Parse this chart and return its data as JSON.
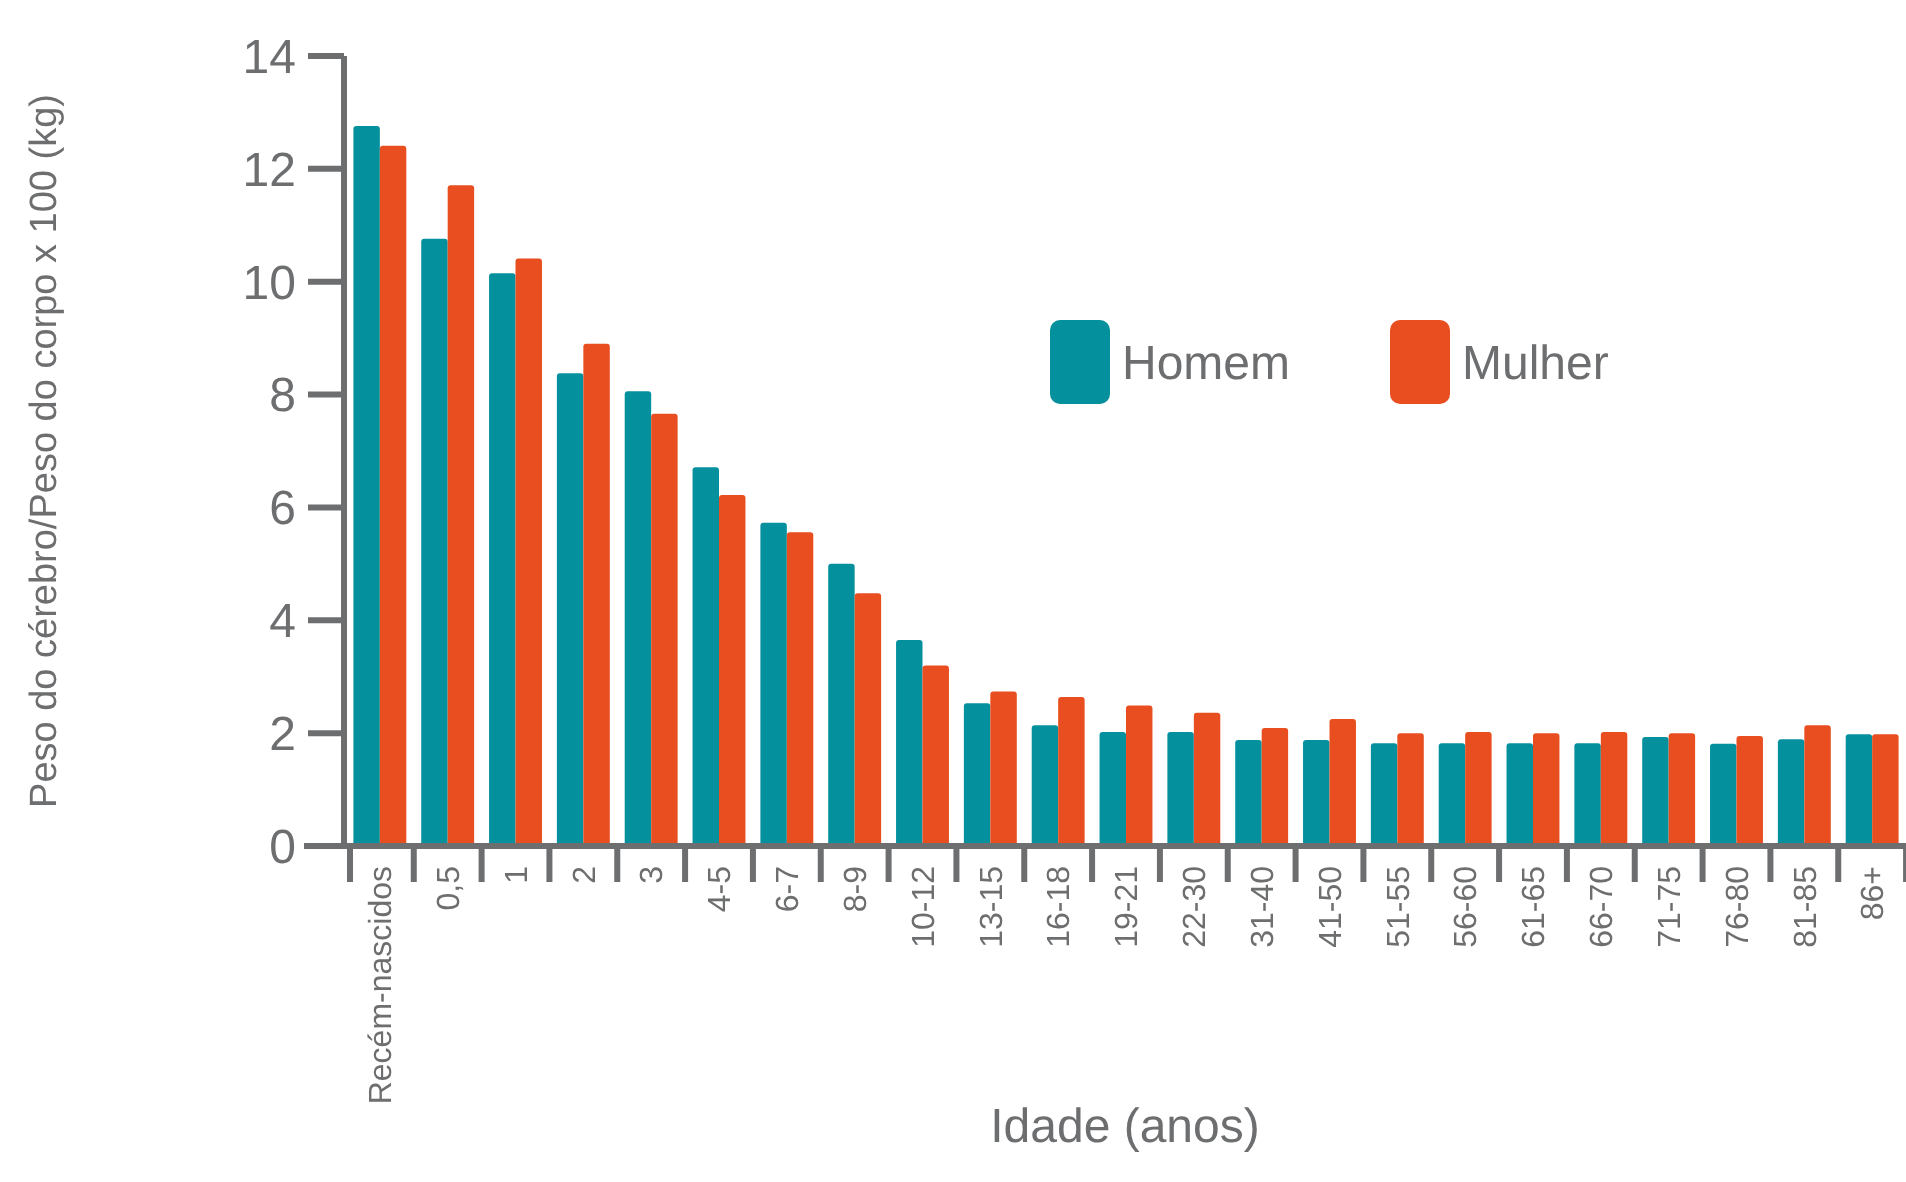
{
  "chart_data": {
    "type": "bar",
    "xlabel": "Idade (anos)",
    "ylabel": "Peso do cérebro/Peso do corpo x 100 (kg)",
    "categories": [
      "Recém-nascidos",
      "0,5",
      "1",
      "2",
      "3",
      "4-5",
      "6-7",
      "8-9",
      "10-12",
      "13-15",
      "16-18",
      "19-21",
      "22-30",
      "31-40",
      "41-50",
      "51-55",
      "56-60",
      "61-65",
      "66-70",
      "71-75",
      "76-80",
      "81-85",
      "86+"
    ],
    "series": [
      {
        "name": "Homem",
        "color": "#05909e",
        "values": [
          12.76,
          10.76,
          10.15,
          8.38,
          8.06,
          6.71,
          5.73,
          5.0,
          3.65,
          2.53,
          2.14,
          2.02,
          2.02,
          1.88,
          1.88,
          1.82,
          1.82,
          1.82,
          1.82,
          1.93,
          1.81,
          1.89,
          1.98
        ]
      },
      {
        "name": "Mulher",
        "color": "#e84e1f",
        "values": [
          12.41,
          11.71,
          10.41,
          8.9,
          7.66,
          6.22,
          5.56,
          4.48,
          3.2,
          2.74,
          2.64,
          2.49,
          2.36,
          2.09,
          2.25,
          2.0,
          2.02,
          2.0,
          2.02,
          2.0,
          1.95,
          2.14,
          1.98
        ]
      }
    ],
    "ylim": [
      0,
      14
    ],
    "yticks": [
      0,
      2,
      4,
      6,
      8,
      10,
      12,
      14
    ],
    "grid": false,
    "legend": "top right"
  }
}
